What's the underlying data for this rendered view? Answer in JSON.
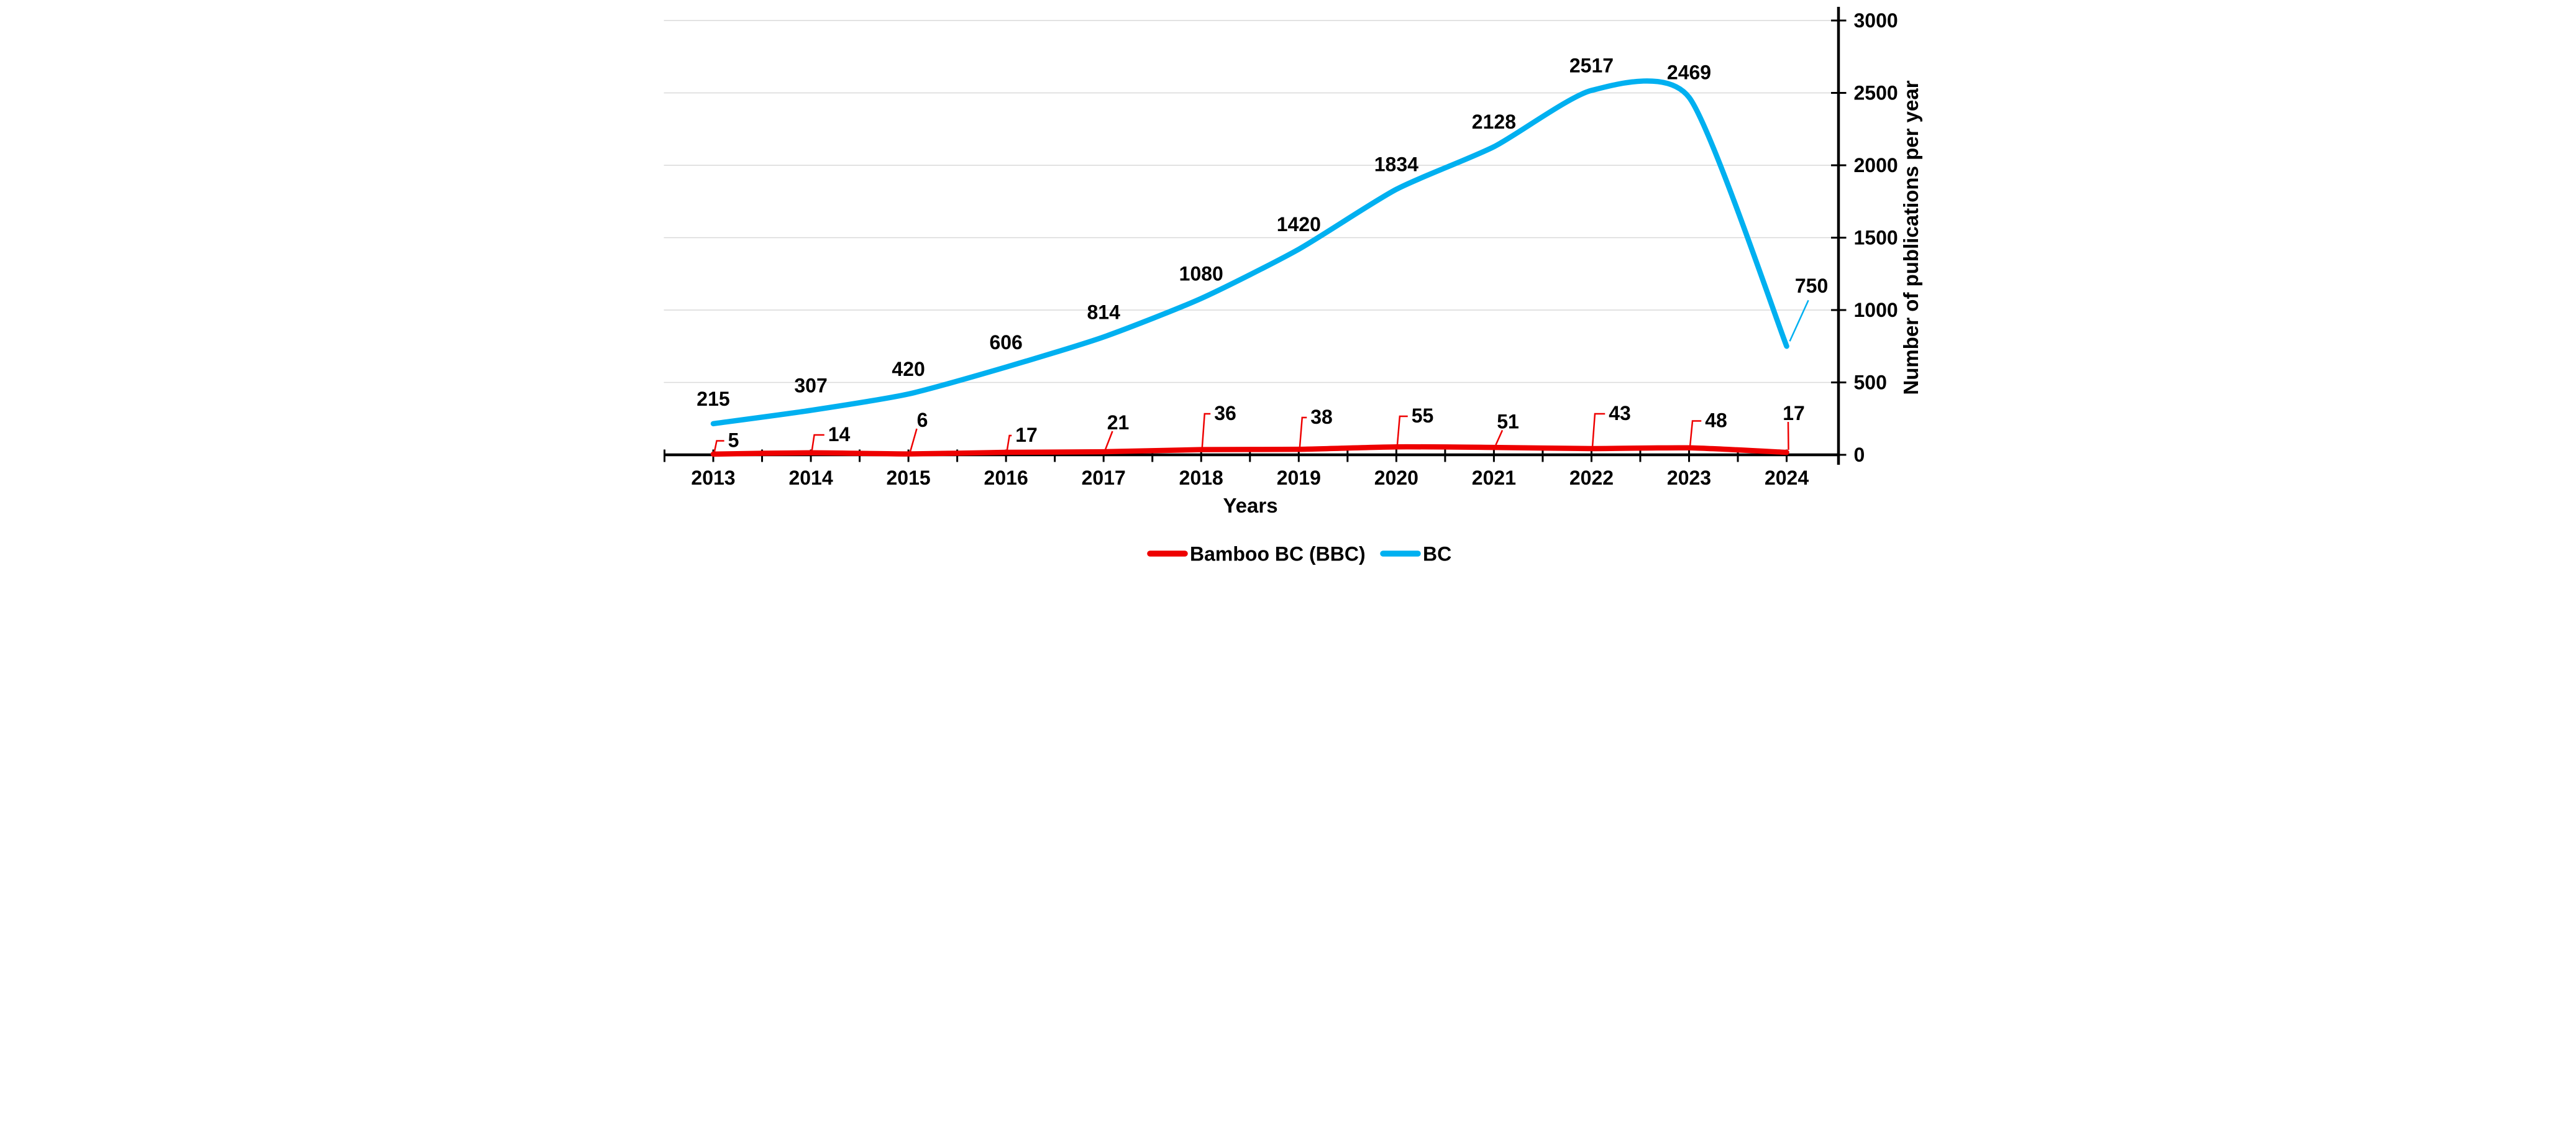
{
  "chart_data": {
    "type": "line",
    "title": "",
    "xlabel": "Years",
    "ylabel": "Number of publications per year",
    "categories": [
      "2013",
      "2014",
      "2015",
      "2016",
      "2017",
      "2018",
      "2019",
      "2020",
      "2021",
      "2022",
      "2023",
      "2024"
    ],
    "series": [
      {
        "name": "Bamboo BC (BBC)",
        "color": "#ee0000",
        "values": [
          5,
          14,
          6,
          17,
          21,
          36,
          38,
          55,
          51,
          43,
          48,
          17
        ]
      },
      {
        "name": "BC",
        "color": "#00b0f0",
        "values": [
          215,
          307,
          420,
          606,
          814,
          1080,
          1420,
          1834,
          2128,
          2517,
          2469,
          750
        ]
      }
    ],
    "ylim": [
      0,
      3000
    ],
    "y_ticks": [
      0,
      500,
      1000,
      1500,
      2000,
      2500,
      3000
    ],
    "grid": "horizontal",
    "gridline_color": "#d9d9d9",
    "axis_color": "#000000",
    "y_axis_side": "right",
    "x_minor_ticks": "between-categories",
    "legend_position": "bottom-center",
    "data_labels": true,
    "smoothed_lines": true
  }
}
